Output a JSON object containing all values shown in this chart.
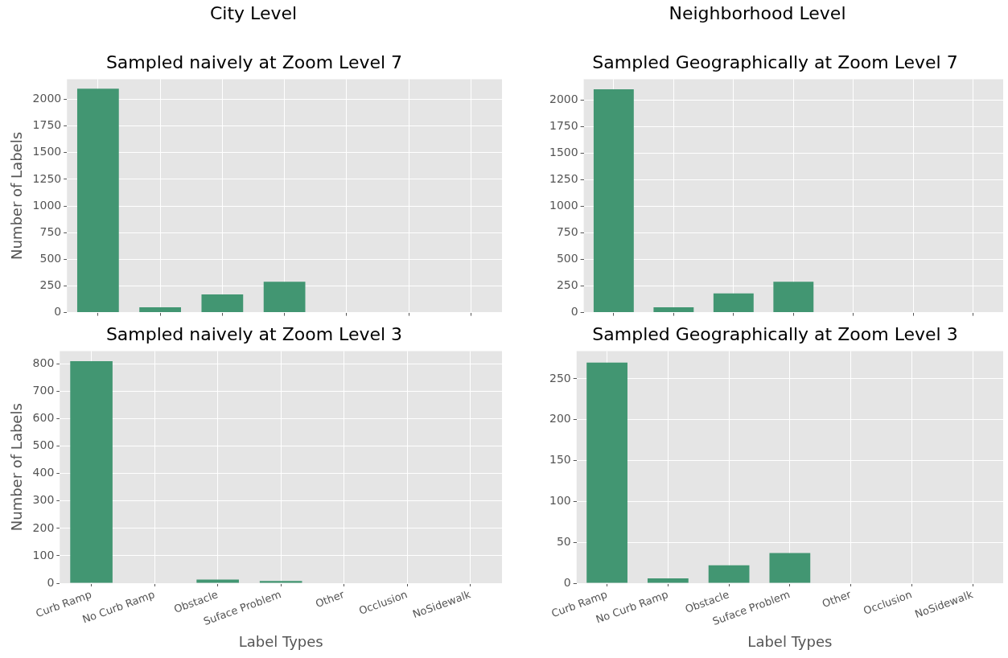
{
  "chart_data": [
    {
      "type": "bar",
      "annotations": [
        "City Level"
      ],
      "title": "Sampled naively at Zoom Level 7",
      "ylabel": "Number of Labels",
      "categories": [
        null,
        null,
        null,
        null,
        null,
        null,
        null
      ],
      "values": [
        2100,
        50,
        170,
        290,
        0,
        0,
        0
      ],
      "color": "#429672",
      "ylim": [
        0,
        2190
      ],
      "yticks": [
        0,
        250,
        500,
        750,
        1000,
        1250,
        1500,
        1750,
        2000
      ],
      "grid": true,
      "tick_labels": "y"
    },
    {
      "type": "bar",
      "annotations": [
        "Neighborhood Level"
      ],
      "title": "Sampled Geographically at Zoom Level 7",
      "categories": [
        null,
        null,
        null,
        null,
        null,
        null,
        null
      ],
      "values": [
        2100,
        50,
        180,
        290,
        0,
        0,
        0
      ],
      "color": "#429672",
      "ylim": [
        0,
        2195
      ],
      "yticks": [
        0,
        250,
        500,
        750,
        1000,
        1250,
        1500,
        1750,
        2000
      ],
      "grid": true,
      "tick_labels": "y"
    },
    {
      "type": "bar",
      "title": "Sampled naively at Zoom Level 3",
      "xlabel": "Label Types",
      "ylabel": "Number of Labels",
      "categories": [
        "Curb Ramp",
        "No Curb Ramp",
        "Obstacle",
        "Suface Problem",
        "Other",
        "Occlusion",
        "NoSidewalk"
      ],
      "values": [
        810,
        0,
        13,
        8,
        0,
        0,
        0
      ],
      "color": "#429672",
      "ylim": [
        0,
        847
      ],
      "yticks": [
        0,
        100,
        200,
        300,
        400,
        500,
        600,
        700,
        800
      ],
      "grid": true
    },
    {
      "type": "bar",
      "title": "Sampled Geographically at Zoom Level 3",
      "xlabel": "Label Types",
      "categories": [
        "Curb Ramp",
        "No Curb Ramp",
        "Obstacle",
        "Suface Problem",
        "Other",
        "Occlusion",
        "NoSidewalk"
      ],
      "values": [
        270,
        6,
        22,
        37,
        0,
        0,
        0
      ],
      "color": "#429672",
      "ylim": [
        0,
        284
      ],
      "yticks": [
        0,
        50,
        100,
        150,
        200,
        250
      ],
      "grid": true
    }
  ]
}
